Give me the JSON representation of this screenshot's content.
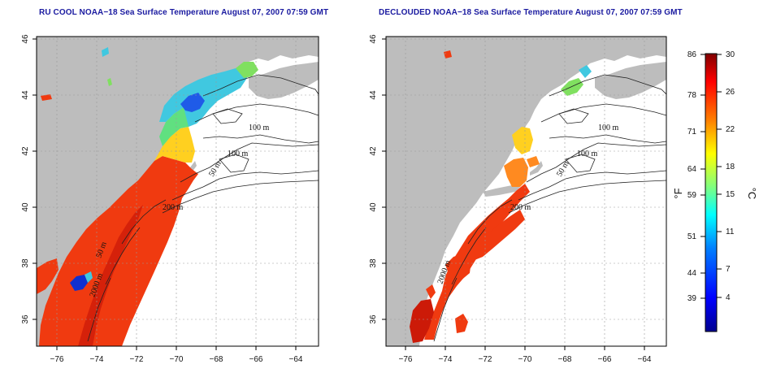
{
  "titles": {
    "left": "RU COOL NOAA−18 Sea Surface Temperature August 07, 2007 07:59 GMT",
    "right": "DECLOUDED NOAA−18 Sea Surface Temperature August 07, 2007 07:59 GMT"
  },
  "map_axes": {
    "lon_ticks": [
      "−76",
      "−74",
      "−72",
      "−70",
      "−68",
      "−66",
      "−64"
    ],
    "lat_ticks": [
      "46",
      "44",
      "42",
      "40",
      "38",
      "36"
    ]
  },
  "contour_labels": {
    "left": [
      "100 m",
      "100 m",
      "50 m",
      "200 m",
      "50 m",
      "2000 m"
    ],
    "right": [
      "100 m",
      "100 m",
      "50 m",
      "200 m",
      "2000 m"
    ]
  },
  "colorbar": {
    "fahrenheit_ticks": [
      "86",
      "78",
      "71",
      "64",
      "59",
      "51",
      "44",
      "39"
    ],
    "celsius_ticks": [
      "30",
      "26",
      "22",
      "18",
      "15",
      "11",
      "7",
      "4"
    ],
    "fahrenheit_unit": "°F",
    "celsius_unit": "°C",
    "colors": [
      "#00008f",
      "#0000ff",
      "#0080ff",
      "#00ffff",
      "#80ff80",
      "#ffff00",
      "#ff8000",
      "#ff0000",
      "#800000"
    ]
  },
  "colors": {
    "land": "#bdbdbd",
    "ocean": "#ffffff",
    "sst_warm": "#f03a10",
    "sst_hot": "#cc1a08",
    "sst_mid": "#ffd020",
    "sst_cool": "#40c8e0",
    "sst_cold": "#1030d0",
    "title": "#1a1aa0"
  }
}
